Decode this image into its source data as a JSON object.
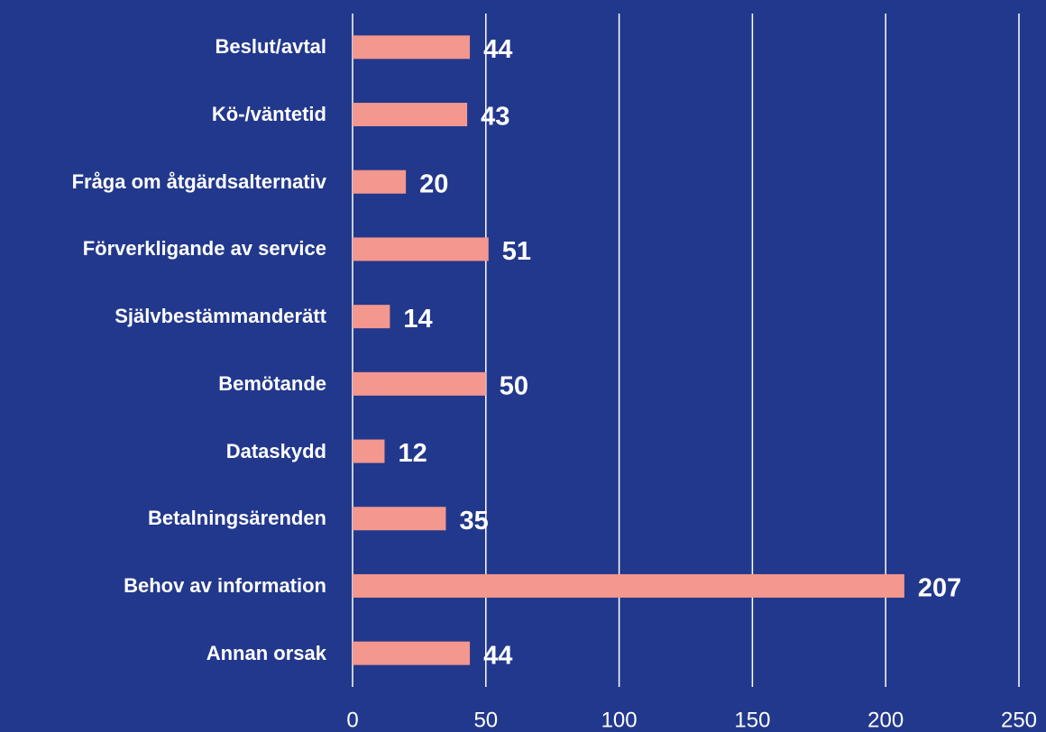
{
  "chart_data": {
    "type": "bar",
    "orientation": "horizontal",
    "categories": [
      "Beslut/avtal",
      "Kö-/väntetid",
      "Fråga om åtgärdsalternativ",
      "Förverkligande av service",
      "Självbestämmanderätt",
      "Bemötande",
      "Dataskydd",
      "Betalningsärenden",
      "Behov av information",
      "Annan orsak"
    ],
    "values": [
      44,
      43,
      20,
      51,
      14,
      50,
      12,
      35,
      207,
      44
    ],
    "color": "#f4978e",
    "xlim": [
      0,
      250
    ],
    "xticks": [
      0,
      50,
      100,
      150,
      200,
      250
    ],
    "grid": true
  }
}
